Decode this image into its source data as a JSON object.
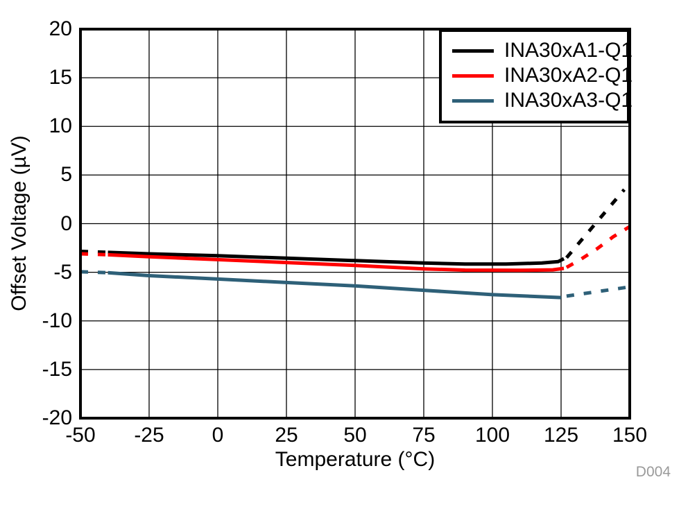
{
  "figure": {
    "watermark": "D004",
    "background_color": "#ffffff",
    "grid_color": "#000000",
    "spine_color": "#000000",
    "watermark_color": "#9a9a9a"
  },
  "chart_data": {
    "type": "line",
    "title": "",
    "xlabel": "Temperature (°C)",
    "ylabel": "Offset Voltage (µV)",
    "xlim": [
      -50,
      150
    ],
    "ylim": [
      -20,
      20
    ],
    "xticks": [
      -50,
      -25,
      0,
      25,
      50,
      75,
      100,
      125,
      150
    ],
    "yticks": [
      -20,
      -15,
      -10,
      -5,
      0,
      5,
      10,
      15,
      20
    ],
    "grid": true,
    "legend_position": "top-right",
    "series": [
      {
        "name": "INA30xA1-Q1",
        "color": "#000000",
        "segments": [
          {
            "style": "dashed",
            "points": [
              [
                -50,
                -2.85
              ],
              [
                -40,
                -2.95
              ]
            ]
          },
          {
            "style": "solid",
            "points": [
              [
                -40,
                -2.95
              ],
              [
                -25,
                -3.1
              ],
              [
                0,
                -3.3
              ],
              [
                25,
                -3.55
              ],
              [
                50,
                -3.8
              ],
              [
                75,
                -4.05
              ],
              [
                90,
                -4.15
              ],
              [
                105,
                -4.15
              ],
              [
                118,
                -4.05
              ],
              [
                124,
                -3.9
              ],
              [
                126,
                -3.6
              ]
            ]
          },
          {
            "style": "dashed",
            "points": [
              [
                127,
                -3.5
              ],
              [
                148,
                3.5
              ]
            ]
          }
        ]
      },
      {
        "name": "INA30xA2-Q1",
        "color": "#ff0000",
        "segments": [
          {
            "style": "dashed",
            "points": [
              [
                -50,
                -3.1
              ],
              [
                -40,
                -3.2
              ]
            ]
          },
          {
            "style": "solid",
            "points": [
              [
                -40,
                -3.2
              ],
              [
                -25,
                -3.4
              ],
              [
                0,
                -3.7
              ],
              [
                25,
                -4.0
              ],
              [
                50,
                -4.3
              ],
              [
                75,
                -4.65
              ],
              [
                90,
                -4.78
              ],
              [
                110,
                -4.8
              ],
              [
                122,
                -4.75
              ],
              [
                126,
                -4.6
              ]
            ]
          },
          {
            "style": "dashed",
            "points": [
              [
                127,
                -4.5
              ],
              [
                132,
                -3.7
              ],
              [
                138,
                -2.6
              ],
              [
                144,
                -1.35
              ],
              [
                150,
                -0.3
              ]
            ]
          }
        ]
      },
      {
        "name": "INA30xA3-Q1",
        "color": "#2e6078",
        "segments": [
          {
            "style": "dashed",
            "points": [
              [
                -50,
                -4.95
              ],
              [
                -40,
                -5.05
              ]
            ]
          },
          {
            "style": "solid",
            "points": [
              [
                -40,
                -5.05
              ],
              [
                -25,
                -5.35
              ],
              [
                0,
                -5.7
              ],
              [
                25,
                -6.05
              ],
              [
                50,
                -6.4
              ],
              [
                75,
                -6.85
              ],
              [
                100,
                -7.3
              ],
              [
                125,
                -7.6
              ]
            ]
          },
          {
            "style": "dashed",
            "points": [
              [
                127,
                -7.45
              ],
              [
                150,
                -6.5
              ]
            ]
          }
        ]
      }
    ]
  }
}
